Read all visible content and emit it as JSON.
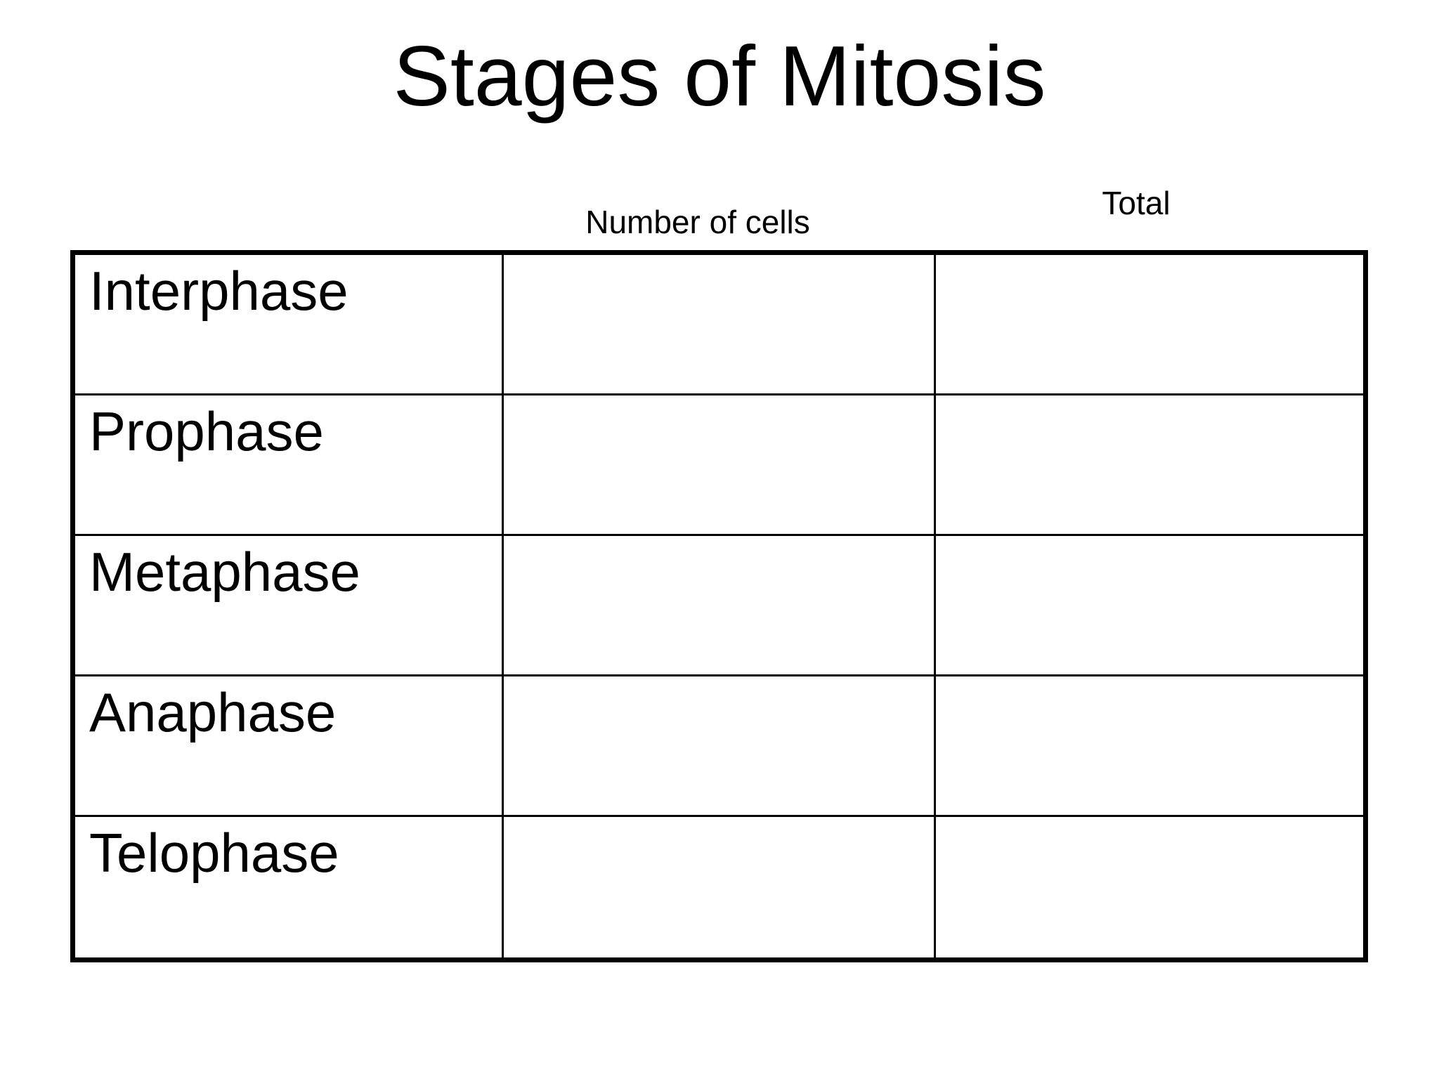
{
  "title": "Stages of Mitosis",
  "table": {
    "column_headers": {
      "number_of_cells": "Number of cells",
      "total": "Total"
    },
    "rows": [
      {
        "stage": "Interphase",
        "number_of_cells": "",
        "total": ""
      },
      {
        "stage": "Prophase",
        "number_of_cells": "",
        "total": ""
      },
      {
        "stage": "Metaphase",
        "number_of_cells": "",
        "total": ""
      },
      {
        "stage": "Anaphase",
        "number_of_cells": "",
        "total": ""
      },
      {
        "stage": "Telophase",
        "number_of_cells": "",
        "total": ""
      }
    ]
  },
  "colors": {
    "background": "#ffffff",
    "text": "#000000",
    "border": "#000000"
  }
}
